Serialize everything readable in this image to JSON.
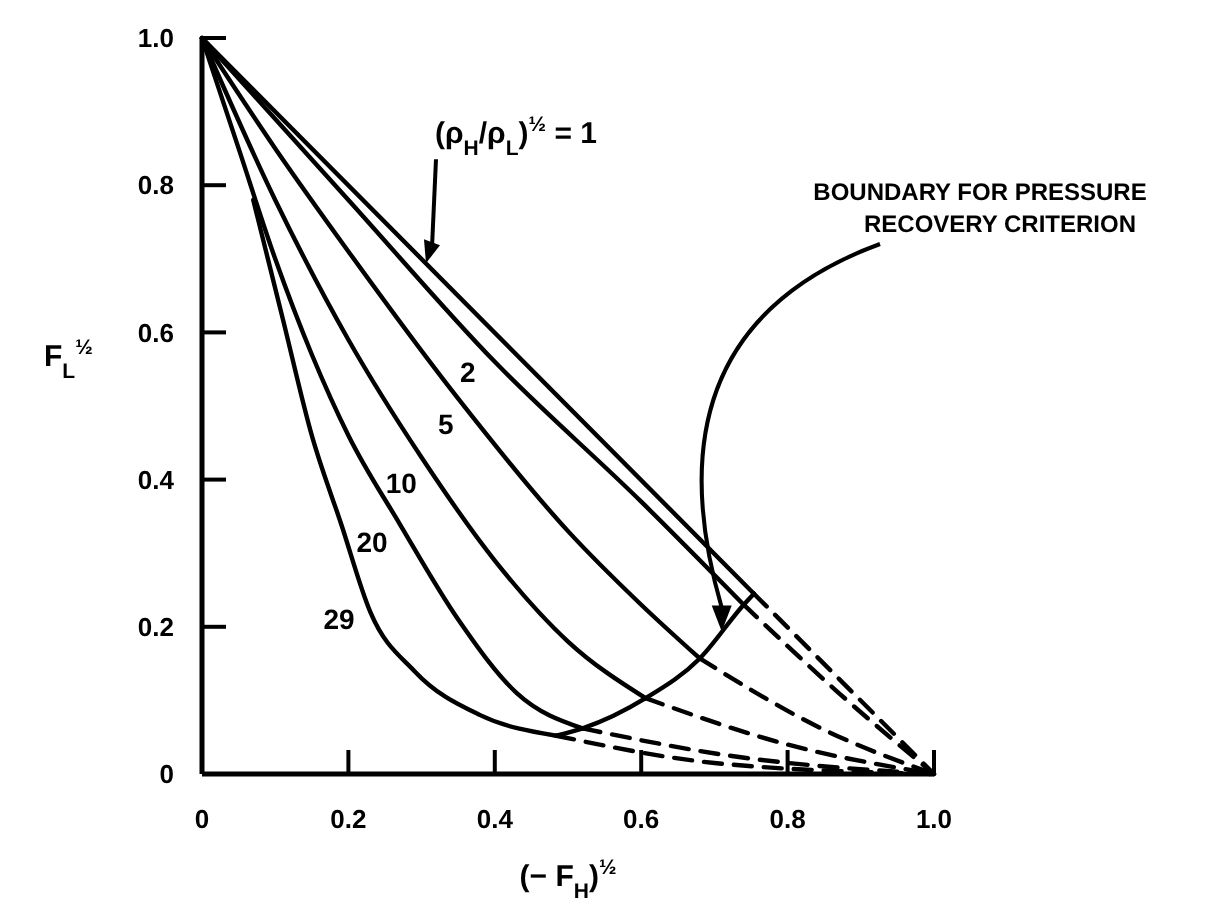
{
  "chart_data": {
    "type": "line",
    "xlabel": "(− F$_{H}$)$^{½}$",
    "ylabel": "F$_{L}$$^{½}$",
    "xlim": [
      0,
      1
    ],
    "ylim": [
      0,
      1
    ],
    "xticks": [
      0,
      0.2,
      0.4,
      0.6,
      0.8,
      {
        "value": 1,
        "label": "1.0"
      }
    ],
    "yticks": [
      0,
      0.2,
      0.4,
      0.6,
      0.8,
      {
        "value": 1,
        "label": "1.0"
      }
    ],
    "grid": false,
    "marker": "none",
    "line_style": "solid",
    "series": [
      {
        "color": "#000000",
        "x": [
          0,
          0.754
        ],
        "values": [
          1,
          0.245
        ]
      },
      {
        "color": "#000000",
        "x": [
          0,
          0.2,
          0.4,
          0.6,
          0.74
        ],
        "values": [
          1,
          0.78,
          0.56,
          0.37,
          0.23
        ]
      },
      {
        "color": "#000000",
        "x": [
          0,
          0.1,
          0.2,
          0.35,
          0.5,
          0.6,
          0.68
        ],
        "values": [
          1,
          0.85,
          0.71,
          0.51,
          0.33,
          0.23,
          0.157
        ]
      },
      {
        "color": "#000000",
        "x": [
          0,
          0.1,
          0.2,
          0.3,
          0.4,
          0.5,
          0.606
        ],
        "values": [
          1,
          0.78,
          0.59,
          0.43,
          0.29,
          0.18,
          0.103
        ]
      },
      {
        "color": "#000000",
        "x": [
          0,
          0.05,
          0.1,
          0.15,
          0.2,
          0.27,
          0.35,
          0.43,
          0.52
        ],
        "values": [
          1,
          0.85,
          0.7,
          0.57,
          0.46,
          0.34,
          0.21,
          0.11,
          0.062
        ]
      },
      {
        "color": "#000000",
        "x": [
          0.07,
          0.11,
          0.15,
          0.19,
          0.23,
          0.29,
          0.38,
          0.484
        ],
        "values": [
          0.78,
          0.62,
          0.46,
          0.34,
          0.22,
          0.14,
          0.08,
          0.052
        ]
      },
      {
        "color": "#000000",
        "x": [
          0.484,
          0.52,
          0.606,
          0.68,
          0.74,
          0.754
        ],
        "values": [
          0.052,
          0.062,
          0.103,
          0.157,
          0.23,
          0.245
        ]
      },
      {
        "color": "#000000",
        "line_style": "dashed",
        "x": [
          0.754,
          1
        ],
        "values": [
          0.245,
          0
        ]
      },
      {
        "color": "#000000",
        "line_style": "dashed",
        "x": [
          0.74,
          0.87,
          1
        ],
        "values": [
          0.23,
          0.11,
          0
        ]
      },
      {
        "color": "#000000",
        "line_style": "dashed",
        "x": [
          0.68,
          0.85,
          1
        ],
        "values": [
          0.157,
          0.06,
          0
        ]
      },
      {
        "color": "#000000",
        "line_style": "dashed",
        "x": [
          0.606,
          0.8,
          1
        ],
        "values": [
          0.103,
          0.04,
          0
        ]
      },
      {
        "color": "#000000",
        "line_style": "dashed",
        "x": [
          0.52,
          0.72,
          1
        ],
        "values": [
          0.062,
          0.025,
          0
        ]
      },
      {
        "color": "#000000",
        "line_style": "dashed",
        "x": [
          0.484,
          0.7,
          1
        ],
        "values": [
          0.052,
          0.015,
          0
        ]
      }
    ],
    "annotations": [
      {
        "text": "(ρ$_{H}$/ρ$_{L}$)$^{½}$ = 1",
        "x": 0.306,
        "y": 0.694
      },
      {
        "text": "2",
        "x": 0.39,
        "y": 0.57
      },
      {
        "text": "5",
        "x": 0.36,
        "y": 0.5
      },
      {
        "text": "10",
        "x": 0.31,
        "y": 0.42
      },
      {
        "text": "20",
        "x": 0.27,
        "y": 0.34
      },
      {
        "text": "29",
        "x": 0.225,
        "y": 0.235
      },
      "BOUNDARY FOR PRESSURE RECOVERY CRITERION"
    ]
  }
}
